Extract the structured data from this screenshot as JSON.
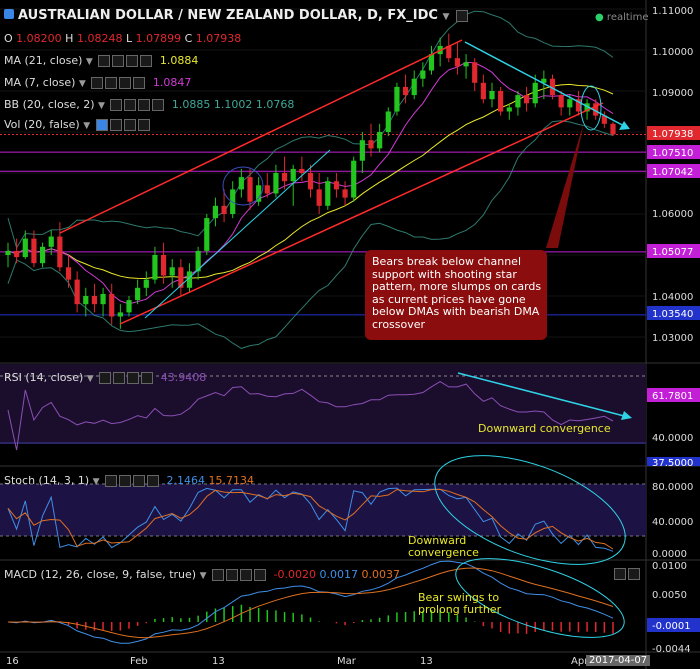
{
  "header": {
    "title": "AUSTRALIAN DOLLAR / NEW ZEALAND DOLLAR, D, FX_IDC",
    "realtime": "realtime",
    "ohlc": {
      "o_label": "O",
      "o": "1.08200",
      "h_label": "H",
      "h": "1.08248",
      "l_label": "L",
      "l": "1.07899",
      "c_label": "C",
      "c": "1.07938"
    }
  },
  "indicators": {
    "ma21": {
      "label": "MA (21, close)",
      "value": "1.0884"
    },
    "ma7": {
      "label": "MA (7, close)",
      "value": "1.0847"
    },
    "bb": {
      "label": "BB (20, close, 2)",
      "v1": "1.0885",
      "v2": "1.1002",
      "v3": "1.0768"
    },
    "vol": {
      "label": "Vol (20, false)"
    }
  },
  "price_axis": [
    "1.11000",
    "1.10000",
    "1.09000",
    "1.06000",
    "1.04000",
    "1.03000"
  ],
  "price_tags": [
    {
      "text": "1.07938",
      "color": "#e0282e"
    },
    {
      "text": "1.07510",
      "color": "#c21fd6"
    },
    {
      "text": "1.07042",
      "color": "#c21fd6"
    },
    {
      "text": "1.05077",
      "color": "#c21fd6"
    },
    {
      "text": "1.03540",
      "color": "#2233cc"
    }
  ],
  "annotation": "Bears break below channel support with shooting star pattern, more slumps on cards as current prices have gone below DMAs with bearish DMA crossover",
  "rsi": {
    "label": "RSI (14, close)",
    "value": "43.9408",
    "tag": "61.7801",
    "axis": [
      "40.0000",
      "37.5000"
    ],
    "note": "Downward convergence"
  },
  "stoch": {
    "label": "Stoch (14, 3, 1)",
    "k": "2.1464",
    "d": "15.7134",
    "axis": [
      "80.0000",
      "40.0000",
      "0.0000"
    ],
    "note": "Downward convergence"
  },
  "macd": {
    "label": "MACD (12, 26, close, 9, false, true)",
    "v1": "-0.0020",
    "v2": "0.0017",
    "v3": "0.0037",
    "axis": [
      "0.0100",
      "0.0050",
      "-0.0001",
      "-0.0044"
    ],
    "note": "Bear swings to prolong further"
  },
  "time_axis": [
    "16",
    "Feb",
    "13",
    "Mar",
    "13",
    "Apr"
  ],
  "date_tag": "2017-04-07",
  "colors": {
    "up": "#23c61e",
    "down": "#e0282e",
    "ma21": "#e8e82a",
    "ma7": "#d23ad6",
    "bb": "#2e7a6e",
    "channel": "#ff2a2a",
    "arrow": "#2ed3e6"
  },
  "chart_data": {
    "type": "candlestick",
    "title": "AUSTRALIAN DOLLAR / NEW ZEALAND DOLLAR, D, FX_IDC",
    "candles": [
      [
        1.05,
        1.053,
        1.047,
        1.051
      ],
      [
        1.051,
        1.054,
        1.048,
        1.0495
      ],
      [
        1.0495,
        1.056,
        1.049,
        1.054
      ],
      [
        1.054,
        1.056,
        1.047,
        1.048
      ],
      [
        1.048,
        1.053,
        1.047,
        1.052
      ],
      [
        1.052,
        1.056,
        1.05,
        1.0545
      ],
      [
        1.0545,
        1.058,
        1.046,
        1.047
      ],
      [
        1.047,
        1.05,
        1.042,
        1.044
      ],
      [
        1.044,
        1.046,
        1.036,
        1.038
      ],
      [
        1.038,
        1.042,
        1.035,
        1.04
      ],
      [
        1.04,
        1.043,
        1.036,
        1.038
      ],
      [
        1.038,
        1.042,
        1.035,
        1.0405
      ],
      [
        1.0405,
        1.043,
        1.033,
        1.035
      ],
      [
        1.035,
        1.038,
        1.032,
        1.036
      ],
      [
        1.036,
        1.04,
        1.035,
        1.039
      ],
      [
        1.039,
        1.044,
        1.038,
        1.042
      ],
      [
        1.042,
        1.046,
        1.04,
        1.044
      ],
      [
        1.044,
        1.052,
        1.043,
        1.05
      ],
      [
        1.05,
        1.053,
        1.043,
        1.045
      ],
      [
        1.045,
        1.049,
        1.042,
        1.047
      ],
      [
        1.047,
        1.049,
        1.04,
        1.042
      ],
      [
        1.042,
        1.048,
        1.041,
        1.046
      ],
      [
        1.046,
        1.052,
        1.044,
        1.051
      ],
      [
        1.051,
        1.06,
        1.05,
        1.059
      ],
      [
        1.059,
        1.064,
        1.057,
        1.062
      ],
      [
        1.062,
        1.066,
        1.058,
        1.06
      ],
      [
        1.06,
        1.068,
        1.059,
        1.066
      ],
      [
        1.066,
        1.071,
        1.064,
        1.069
      ],
      [
        1.069,
        1.071,
        1.061,
        1.063
      ],
      [
        1.063,
        1.069,
        1.062,
        1.067
      ],
      [
        1.067,
        1.07,
        1.064,
        1.065
      ],
      [
        1.065,
        1.072,
        1.064,
        1.07
      ],
      [
        1.07,
        1.074,
        1.066,
        1.068
      ],
      [
        1.068,
        1.072,
        1.062,
        1.071
      ],
      [
        1.071,
        1.074,
        1.068,
        1.07
      ],
      [
        1.07,
        1.072,
        1.064,
        1.066
      ],
      [
        1.066,
        1.07,
        1.06,
        1.062
      ],
      [
        1.062,
        1.069,
        1.061,
        1.068
      ],
      [
        1.068,
        1.07,
        1.064,
        1.066
      ],
      [
        1.066,
        1.068,
        1.062,
        1.064
      ],
      [
        1.064,
        1.074,
        1.063,
        1.073
      ],
      [
        1.073,
        1.08,
        1.07,
        1.078
      ],
      [
        1.078,
        1.082,
        1.074,
        1.076
      ],
      [
        1.076,
        1.082,
        1.075,
        1.08
      ],
      [
        1.08,
        1.086,
        1.079,
        1.085
      ],
      [
        1.085,
        1.092,
        1.084,
        1.091
      ],
      [
        1.091,
        1.094,
        1.087,
        1.089
      ],
      [
        1.089,
        1.095,
        1.088,
        1.093
      ],
      [
        1.093,
        1.097,
        1.091,
        1.095
      ],
      [
        1.095,
        1.101,
        1.094,
        1.099
      ],
      [
        1.099,
        1.103,
        1.096,
        1.101
      ],
      [
        1.101,
        1.104,
        1.097,
        1.098
      ],
      [
        1.098,
        1.102,
        1.094,
        1.096
      ],
      [
        1.096,
        1.099,
        1.093,
        1.097
      ],
      [
        1.097,
        1.098,
        1.09,
        1.092
      ],
      [
        1.092,
        1.094,
        1.087,
        1.088
      ],
      [
        1.088,
        1.092,
        1.086,
        1.09
      ],
      [
        1.09,
        1.091,
        1.084,
        1.085
      ],
      [
        1.085,
        1.087,
        1.083,
        1.086
      ],
      [
        1.086,
        1.09,
        1.084,
        1.089
      ],
      [
        1.089,
        1.091,
        1.085,
        1.087
      ],
      [
        1.087,
        1.094,
        1.086,
        1.092
      ],
      [
        1.092,
        1.095,
        1.088,
        1.093
      ],
      [
        1.093,
        1.094,
        1.088,
        1.089
      ],
      [
        1.089,
        1.09,
        1.084,
        1.086
      ],
      [
        1.086,
        1.089,
        1.084,
        1.088
      ],
      [
        1.088,
        1.09,
        1.084,
        1.085
      ],
      [
        1.085,
        1.088,
        1.083,
        1.087
      ],
      [
        1.087,
        1.088,
        1.083,
        1.084
      ],
      [
        1.084,
        1.085,
        1.081,
        1.082
      ],
      [
        1.082,
        1.0825,
        1.079,
        1.0794
      ]
    ]
  }
}
